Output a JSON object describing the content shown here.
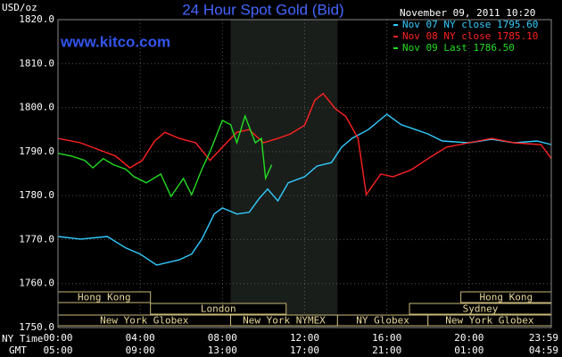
{
  "chart_data": {
    "type": "line",
    "title": "24 Hour Spot Gold (Bid)",
    "watermark": "www.kitco.com",
    "y_label": "USD/oz",
    "legend_title": "November 09, 2011 10:20",
    "x_axis_labels": [
      "NY Time",
      "GMT"
    ],
    "xlim": [
      0,
      24
    ],
    "ylim": [
      1750,
      1820
    ],
    "xticks": [
      {
        "value": 0,
        "label": "00:00"
      },
      {
        "value": 4,
        "label": "04:00"
      },
      {
        "value": 8,
        "label": "08:00"
      },
      {
        "value": 12,
        "label": "12:00"
      },
      {
        "value": 16,
        "label": "16:00"
      },
      {
        "value": 20,
        "label": "20:00"
      },
      {
        "value": 24,
        "label": "23:59"
      }
    ],
    "xticks2": [
      {
        "value": 0,
        "label": "05:00"
      },
      {
        "value": 4,
        "label": "09:00"
      },
      {
        "value": 8,
        "label": "13:00"
      },
      {
        "value": 12,
        "label": "17:00"
      },
      {
        "value": 16,
        "label": "21:00"
      },
      {
        "value": 20,
        "label": "01:00"
      },
      {
        "value": 24,
        "label": "04:59"
      }
    ],
    "yticks": [
      {
        "value": 1750,
        "label": "1750.0"
      },
      {
        "value": 1760,
        "label": "1760.0"
      },
      {
        "value": 1770,
        "label": "1770.0"
      },
      {
        "value": 1780,
        "label": "1780.0"
      },
      {
        "value": 1790,
        "label": "1790.0"
      },
      {
        "value": 1800,
        "label": "1800.0"
      },
      {
        "value": 1810,
        "label": "1810.0"
      },
      {
        "value": 1820,
        "label": "1820.0"
      }
    ],
    "grid": true,
    "shade": [
      8.4,
      13.6
    ],
    "sessions": [
      {
        "label": "Hong Kong",
        "start": 0,
        "end": 4.5,
        "row": 0
      },
      {
        "label": "Hong Kong",
        "start": 19.6,
        "end": 24,
        "row": 0
      },
      {
        "label": "London",
        "start": 4.5,
        "end": 11.1,
        "row": 1
      },
      {
        "label": "Sydney",
        "start": 17.1,
        "end": 24,
        "row": 1
      },
      {
        "label": "New York Globex",
        "start": 0,
        "end": 8.4,
        "row": 2
      },
      {
        "label": "New York NYMEX",
        "start": 8.4,
        "end": 13.6,
        "row": 2
      },
      {
        "label": "NY Globex",
        "start": 13.6,
        "end": 18,
        "row": 2
      },
      {
        "label": "New York Globex",
        "start": 18,
        "end": 24,
        "row": 2
      }
    ],
    "series": [
      {
        "name": "Nov 07 NY close 1795.60",
        "color": "#33ccff",
        "x": [
          0,
          1.1,
          2.4,
          3.3,
          4.0,
          4.8,
          5.9,
          6.5,
          7.0,
          7.6,
          8.0,
          8.7,
          9.3,
          9.8,
          10.2,
          10.7,
          11.2,
          12.0,
          12.6,
          13.3,
          13.8,
          14.3,
          15.1,
          16.0,
          16.7,
          17.4,
          18.0,
          18.7,
          20.0,
          21.1,
          22.2,
          23.3,
          24.0
        ],
        "values": [
          1770.7,
          1770.1,
          1770.7,
          1768.1,
          1766.7,
          1764.2,
          1765.4,
          1766.7,
          1770.1,
          1775.8,
          1777.2,
          1775.8,
          1776.2,
          1779.4,
          1781.5,
          1778.8,
          1782.9,
          1784.3,
          1786.7,
          1787.5,
          1791,
          1793,
          1795,
          1798.5,
          1796.1,
          1795,
          1794,
          1792.4,
          1792,
          1792.8,
          1792,
          1792.4,
          1791.6
        ]
      },
      {
        "name": "Nov 08 NY close 1785.10",
        "color": "#ff2222",
        "x": [
          0,
          1.1,
          2.0,
          2.8,
          3.5,
          4.1,
          4.7,
          5.2,
          5.9,
          6.7,
          7.4,
          8.0,
          8.7,
          9.3,
          10.0,
          10.7,
          11.3,
          12.0,
          12.5,
          12.9,
          13.5,
          14.0,
          14.6,
          15.0,
          15.7,
          16.3,
          17.2,
          18.0,
          18.9,
          20.0,
          21.1,
          22.2,
          23.5,
          24.0
        ],
        "values": [
          1793,
          1792,
          1790.4,
          1789,
          1786.3,
          1788,
          1792.4,
          1794.4,
          1793,
          1792,
          1788,
          1791,
          1794.4,
          1795,
          1792,
          1793,
          1794,
          1796,
          1801.7,
          1803.2,
          1799.7,
          1798,
          1793,
          1780.2,
          1784.9,
          1784.3,
          1785.9,
          1788.4,
          1791,
          1792,
          1793,
          1792,
          1791.6,
          1788.4
        ]
      },
      {
        "name": "Nov 09 Last 1786.50",
        "color": "#22dd22",
        "x": [
          0,
          0.65,
          1.3,
          1.7,
          2.2,
          2.7,
          3.3,
          3.7,
          4.3,
          5.0,
          5.5,
          6.1,
          6.5,
          7.0,
          7.4,
          8.0,
          8.4,
          8.7,
          9.1,
          9.6,
          9.9,
          10.1,
          10.4
        ],
        "values": [
          1789.6,
          1789,
          1788,
          1786.3,
          1788.4,
          1787,
          1786,
          1784.3,
          1782.9,
          1784.9,
          1779.8,
          1783.9,
          1780.2,
          1786,
          1790,
          1797.1,
          1796.1,
          1792,
          1798.1,
          1792,
          1793,
          1783.9,
          1787
        ]
      }
    ]
  }
}
